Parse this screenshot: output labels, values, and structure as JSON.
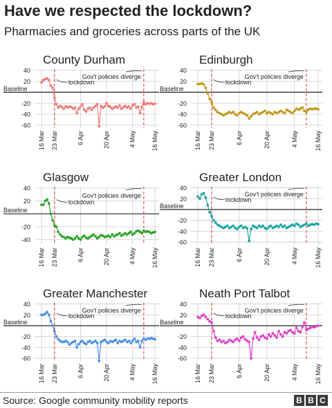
{
  "title": "Have we respected the lockdown?",
  "subtitle": "Pharmacies and groceries across parts of the UK",
  "source": "Source: Google community mobility reports",
  "logo": [
    "B",
    "B",
    "C"
  ],
  "annotations": {
    "lockdown": "lockdown",
    "diverge": "Gov't policies diverge",
    "baseline": "Baseline"
  },
  "colors": {
    "event_line": "#e03030",
    "baseline": "#222222",
    "grid": "#cccccc"
  },
  "chart_data": [
    {
      "type": "line",
      "title": "County Durham",
      "color": "#f07c78",
      "ylim": [
        -65,
        42
      ],
      "yticks": [
        40,
        20,
        -20,
        -40,
        -60
      ],
      "xticks": [
        "16 Mar",
        "23 Mar",
        "6 Apr",
        "20 Apr",
        "4 May",
        "16 May"
      ],
      "xtick_days": [
        0,
        7,
        21,
        35,
        49,
        61
      ],
      "lockdown_day": 7,
      "diverge_day": 55,
      "series": [
        {
          "start": "16 Mar",
          "values": [
            18,
            22,
            24,
            25,
            22,
            12,
            8,
            -10,
            -22,
            -28,
            -25,
            -27,
            -30,
            -26,
            -28,
            -26,
            -27,
            -30,
            -28,
            -38,
            -30,
            -26,
            -22,
            -32,
            -35,
            -30,
            -28,
            -32,
            -28,
            -25,
            -22,
            -62,
            -25,
            -28,
            -26,
            -20,
            -25,
            -27,
            -30,
            -28,
            -26,
            -28,
            -24,
            -30,
            -27,
            -25,
            -28,
            -26,
            -30,
            -24,
            -22,
            -28,
            -26,
            -38,
            -27,
            -18,
            -22,
            -20,
            -21,
            -20,
            -22,
            -21
          ]
        }
      ]
    },
    {
      "type": "line",
      "title": "Edinburgh",
      "color": "#c19a1b",
      "ylim": [
        -65,
        42
      ],
      "yticks": [
        40,
        20,
        -20,
        -40,
        -60
      ],
      "xticks": [
        "16 Mar",
        "23 Mar",
        "6 Apr",
        "20 Apr",
        "4 May",
        "16 May"
      ],
      "xtick_days": [
        0,
        7,
        21,
        35,
        49,
        61
      ],
      "lockdown_day": 7,
      "diverge_day": 55,
      "series": [
        {
          "start": "16 Mar",
          "values": [
            15,
            15,
            16,
            14,
            8,
            -2,
            -12,
            -18,
            -28,
            -32,
            -36,
            -38,
            -40,
            -42,
            -40,
            -38,
            -36,
            -38,
            -36,
            -40,
            -42,
            -38,
            -36,
            -38,
            -40,
            -42,
            -48,
            -44,
            -40,
            -38,
            -36,
            -40,
            -38,
            -36,
            -34,
            -38,
            -36,
            -38,
            -40,
            -36,
            -38,
            -36,
            -34,
            -36,
            -38,
            -32,
            -34,
            -36,
            -38,
            -34,
            -30,
            -32,
            -30,
            -28,
            -34,
            -36,
            -32,
            -30,
            -31,
            -30,
            -30,
            -31
          ]
        }
      ]
    },
    {
      "type": "line",
      "title": "Glasgow",
      "color": "#2aa52a",
      "ylim": [
        -48,
        42
      ],
      "yticks": [
        40,
        20,
        -20,
        -40
      ],
      "xticks": [
        "16 Mar",
        "23 Mar",
        "6 Apr",
        "20 Apr",
        "4 May",
        "16 May"
      ],
      "xtick_days": [
        0,
        7,
        21,
        35,
        49,
        61
      ],
      "lockdown_day": 7,
      "diverge_day": 55,
      "series": [
        {
          "start": "16 Mar",
          "values": [
            14,
            14,
            20,
            22,
            16,
            0,
            -10,
            -18,
            -20,
            -28,
            -32,
            -35,
            -36,
            -38,
            -36,
            -37,
            -38,
            -40,
            -38,
            -35,
            -38,
            -40,
            -36,
            -34,
            -37,
            -38,
            -36,
            -34,
            -32,
            -35,
            -38,
            -36,
            -33,
            -34,
            -36,
            -35,
            -34,
            -36,
            -32,
            -35,
            -33,
            -32,
            -30,
            -34,
            -32,
            -30,
            -32,
            -30,
            -28,
            -32,
            -30,
            -27,
            -26,
            -28,
            -30,
            -26,
            -28,
            -27,
            -28,
            -30,
            -29,
            -28
          ]
        }
      ]
    },
    {
      "type": "line",
      "title": "Greater London",
      "color": "#1aa5a5",
      "ylim": [
        -65,
        42
      ],
      "yticks": [
        40,
        20,
        -20,
        -40,
        -60
      ],
      "xticks": [
        "16 Mar",
        "23 Mar",
        "6 Apr",
        "20 Apr",
        "4 May",
        "16 May"
      ],
      "xtick_days": [
        0,
        7,
        21,
        35,
        49,
        61
      ],
      "lockdown_day": 7,
      "diverge_day": 55,
      "series": [
        {
          "start": "16 Mar",
          "values": [
            24,
            20,
            28,
            30,
            22,
            8,
            -5,
            -12,
            -20,
            -24,
            -28,
            -30,
            -32,
            -34,
            -32,
            -30,
            -34,
            -32,
            -30,
            -34,
            -36,
            -32,
            -30,
            -34,
            -32,
            -35,
            -58,
            -36,
            -30,
            -32,
            -34,
            -30,
            -32,
            -30,
            -34,
            -36,
            -32,
            -30,
            -34,
            -32,
            -30,
            -32,
            -28,
            -32,
            -30,
            -34,
            -32,
            -30,
            -28,
            -30,
            -26,
            -28,
            -32,
            -30,
            -28,
            -26,
            -30,
            -28,
            -27,
            -28,
            -26,
            -27
          ]
        }
      ]
    },
    {
      "type": "line",
      "title": "Greater Manchester",
      "color": "#4a90e2",
      "ylim": [
        -65,
        42
      ],
      "yticks": [
        40,
        20,
        -20,
        -40,
        -60
      ],
      "xticks": [
        "16 Mar",
        "23 Mar",
        "6 Apr",
        "20 Apr",
        "4 May",
        "16 May"
      ],
      "xtick_days": [
        0,
        7,
        21,
        35,
        49,
        61
      ],
      "lockdown_day": 7,
      "diverge_day": 55,
      "series": [
        {
          "start": "16 Mar",
          "values": [
            20,
            20,
            22,
            25,
            20,
            8,
            0,
            -10,
            -20,
            -25,
            -28,
            -30,
            -30,
            -28,
            -30,
            -35,
            -32,
            -30,
            -28,
            -40,
            -34,
            -30,
            -28,
            -32,
            -34,
            -30,
            -28,
            -32,
            -30,
            -28,
            -32,
            -65,
            -30,
            -28,
            -26,
            -30,
            -32,
            -28,
            -30,
            -28,
            -26,
            -32,
            -28,
            -30,
            -28,
            -26,
            -30,
            -28,
            -32,
            -28,
            -24,
            -30,
            -28,
            -40,
            -28,
            -24,
            -26,
            -24,
            -24,
            -23,
            -24,
            -25
          ]
        }
      ]
    },
    {
      "type": "line",
      "title": "Neath Port Talbot",
      "color": "#e040c8",
      "ylim": [
        -65,
        42
      ],
      "yticks": [
        40,
        20,
        -20,
        -40,
        -60
      ],
      "xticks": [
        "16 Mar",
        "23 Mar",
        "6 Apr",
        "20 Apr",
        "4 May",
        "16 May"
      ],
      "xtick_days": [
        0,
        7,
        21,
        35,
        49,
        61
      ],
      "lockdown_day": 7,
      "diverge_day": 55,
      "series": [
        {
          "start": "16 Mar",
          "values": [
            16,
            14,
            18,
            20,
            16,
            12,
            8,
            6,
            -10,
            -22,
            -28,
            -26,
            -30,
            -28,
            -32,
            -30,
            -26,
            -28,
            -30,
            -26,
            -24,
            -28,
            -22,
            -20,
            -25,
            -28,
            -30,
            -60,
            -24,
            -12,
            -22,
            -26,
            -20,
            -18,
            -22,
            -24,
            -16,
            -20,
            -14,
            -18,
            -22,
            -10,
            -16,
            -20,
            -12,
            -14,
            -10,
            -8,
            -12,
            -14,
            -4,
            -10,
            -12,
            -2,
            6,
            -8,
            -6,
            -4,
            -2,
            -3,
            -1,
            0
          ]
        }
      ]
    }
  ]
}
